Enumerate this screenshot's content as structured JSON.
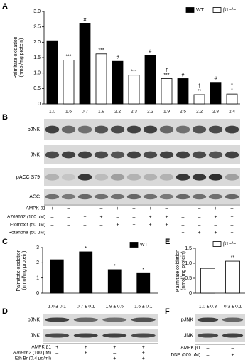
{
  "panel_labels": [
    "A",
    "B",
    "C",
    "D",
    "E",
    "F"
  ],
  "chart_data": [
    {
      "type": "bar",
      "y_label": [
        "Palmitate oxidation",
        "(nmol/mg protein)"
      ],
      "ylim": [
        0,
        3
      ],
      "yticks": [
        0,
        0.5,
        {
          "value": 1,
          "label": "1.0"
        },
        1.5,
        {
          "value": 2,
          "label": "2.0"
        },
        2.5,
        {
          "value": 3,
          "label": "3.0"
        }
      ],
      "legend": "upper right",
      "series": [
        {
          "name": "WT",
          "color": "#000000",
          "values": [
            2.05,
            2.6,
            1.38,
            1.58,
            0.82,
            0.7
          ],
          "annotations": [
            null,
            [
              "#"
            ],
            [
              "#"
            ],
            [
              "#"
            ],
            [
              "#"
            ],
            [
              "#"
            ]
          ]
        },
        {
          "name": "β1−/−",
          "color": "#ffffff",
          "values": [
            1.42,
            1.62,
            0.93,
            0.82,
            0.3,
            0.32
          ],
          "annotations": [
            [
              "***"
            ],
            [
              "***"
            ],
            [
              "†",
              "***"
            ],
            [
              "†",
              "***"
            ],
            [
              "†",
              "**"
            ],
            [
              "†",
              "*"
            ]
          ]
        }
      ]
    },
    {
      "type": "bar",
      "y_label": [
        "Palmitate oxidation",
        "(nmol/mg protein)"
      ],
      "ylim": [
        0,
        3
      ],
      "yticks": [
        0,
        1,
        2,
        3
      ],
      "legend": "upper right",
      "series": [
        {
          "name": "WT",
          "color": "#000000",
          "values": [
            2.2,
            2.72,
            1.55,
            1.3
          ],
          "annotations": [
            null,
            [
              "*"
            ],
            [
              "*"
            ],
            [
              "*"
            ]
          ]
        }
      ]
    },
    {
      "type": "bar",
      "y_label": [
        "Palmitate oxidation",
        "(nmol/mg protein)"
      ],
      "ylim": [
        0,
        1.5
      ],
      "yticks": [
        0,
        0.5,
        {
          "value": 1,
          "label": "1.0"
        },
        1.5
      ],
      "legend": "upper right",
      "series": [
        {
          "name": "β1−/−",
          "color": "#ffffff",
          "values": [
            0.83,
            1.07
          ],
          "annotations": [
            null,
            [
              "**"
            ]
          ]
        }
      ]
    }
  ],
  "blots": [
    {
      "quantification": [
        "1.0",
        "1.6",
        "0.7",
        "1.9",
        "2.2",
        "2.3",
        "2.2",
        "1.9",
        "2.5",
        "2.2",
        "2.8",
        "2.4"
      ],
      "rows": [
        "pJNK",
        "JNK",
        "pACC S79",
        "ACC"
      ],
      "conditions": [
        {
          "label": "AMPK β1",
          "lanes": [
            "+",
            "–",
            "+",
            "–",
            "+",
            "–",
            "+",
            "–",
            "+",
            "–",
            "+",
            "–"
          ]
        },
        {
          "label": "A769662 (100 μM)",
          "lanes": [
            "–",
            "–",
            "+",
            "+",
            "–",
            "–",
            "+",
            "+",
            "–",
            "–",
            "+",
            "+"
          ]
        },
        {
          "label": "Etomoxir (50 μM)",
          "lanes": [
            "–",
            "–",
            "–",
            "–",
            "+",
            "+",
            "+",
            "+",
            "–",
            "–",
            "–",
            "–"
          ]
        },
        {
          "label": "Rotenone (50 μM)",
          "lanes": [
            "–",
            "–",
            "–",
            "–",
            "–",
            "–",
            "–",
            "–",
            "+",
            "+",
            "+",
            "+"
          ]
        }
      ]
    },
    {
      "quantification": [
        "1.0 ± 0.1",
        "0.7 ± 0.1",
        "1.9 ± 0.5",
        "1.6 ± 0.1"
      ],
      "rows": [
        "pJNK",
        "JNK"
      ],
      "conditions": [
        {
          "label": "AMPK β1",
          "lanes": [
            "+",
            "+",
            "+",
            "+"
          ]
        },
        {
          "label": "A769662 (100 μM)",
          "lanes": [
            "–",
            "+",
            "–",
            "+"
          ]
        },
        {
          "label": "Eth Br (0.4 μg/ml)",
          "lanes": [
            "–",
            "–",
            "+",
            "+"
          ]
        }
      ]
    },
    {
      "quantification": [
        "1.0 ± 0.3",
        "0.3 ± 0.1"
      ],
      "rows": [
        "pJNK",
        "JNK"
      ],
      "conditions": [
        {
          "label": "AMPK β1",
          "lanes": [
            "–",
            "–"
          ]
        },
        {
          "label": "DNP (500 μM)",
          "lanes": [
            "–",
            "+"
          ]
        }
      ]
    }
  ]
}
